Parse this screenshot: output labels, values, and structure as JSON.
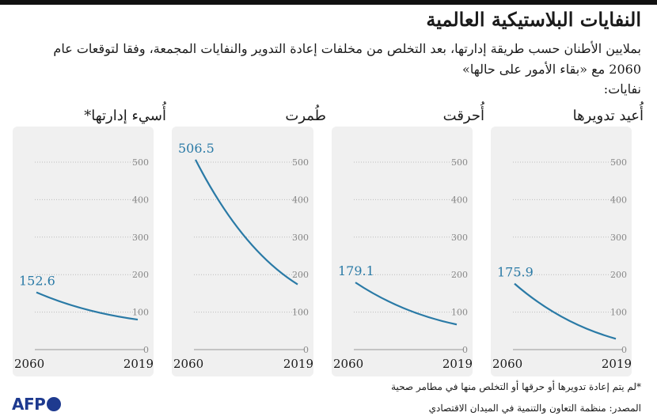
{
  "title": "النفايات البلاستيكية العالمية",
  "subtitle": "بملايين الأطنان حسب طريقة إدارتها، بعد التخلص من مخلفات إعادة التدوير والنفايات المجمعة، وفقا لتوقعات عام 2060 مع «بقاء الأمور على حالها»",
  "legend_label": "نفايات:",
  "footnote": "*لم يتم إعادة تدويرها أو حرقها أو التخلص منها في مطامر صحية",
  "source": "المصدر: منظمة التعاون والتنمية في الميدان الاقتصادي",
  "logo_text": "AFP",
  "colors": {
    "line": "#2a7aa6",
    "panel_bg": "#f0f0f0",
    "axis": "#bbbbbb",
    "tick_text": "#888888"
  },
  "chart_data": [
    {
      "type": "line",
      "title": "أُسيء إدارتها*",
      "x": [
        2060,
        2019
      ],
      "values": [
        152.6,
        80
      ],
      "value_label": "152.6",
      "ylim": [
        0,
        500
      ],
      "yticks": [
        0,
        100,
        200,
        300,
        400,
        500
      ],
      "grid": true
    },
    {
      "type": "line",
      "title": "طُمرت",
      "x": [
        2060,
        2019
      ],
      "values": [
        506.5,
        174
      ],
      "value_label": "506.5",
      "ylim": [
        0,
        500
      ],
      "yticks": [
        0,
        100,
        200,
        300,
        400,
        500
      ],
      "grid": true
    },
    {
      "type": "line",
      "title": "أُحرقت",
      "x": [
        2060,
        2019
      ],
      "values": [
        179.1,
        67
      ],
      "value_label": "179.1",
      "ylim": [
        0,
        500
      ],
      "yticks": [
        0,
        100,
        200,
        300,
        400,
        500
      ],
      "grid": true
    },
    {
      "type": "line",
      "title": "أُعيد تدويرها",
      "x": [
        2060,
        2019
      ],
      "values": [
        175.9,
        29
      ],
      "value_label": "175.9",
      "ylim": [
        0,
        500
      ],
      "yticks": [
        0,
        100,
        200,
        300,
        400,
        500
      ],
      "grid": true
    }
  ]
}
